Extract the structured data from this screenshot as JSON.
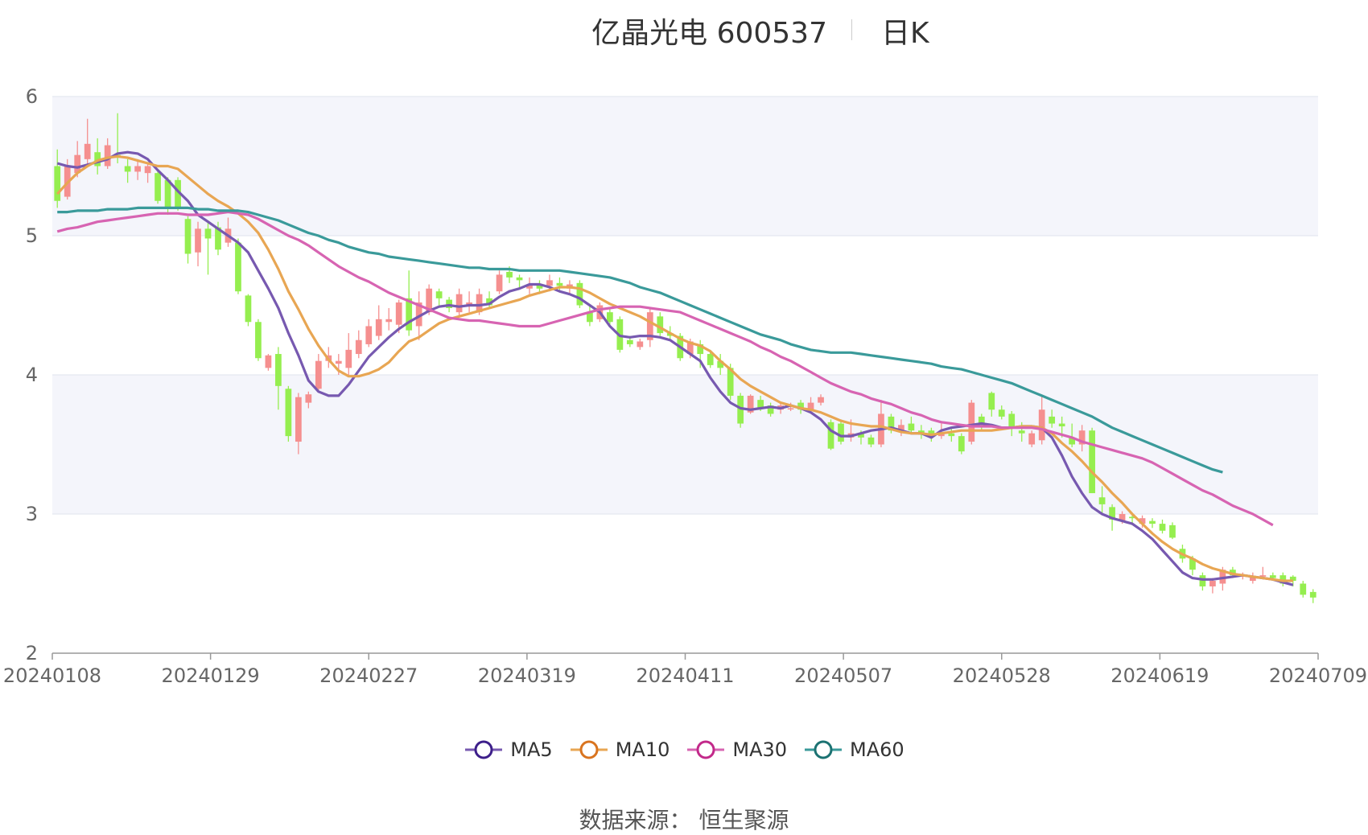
{
  "header": {
    "title": "亿晶光电 600537",
    "subtitle": "日K"
  },
  "source_label": "数据来源：  恒生聚源",
  "colors": {
    "up": "#f58f8f",
    "down": "#95ee4f",
    "grid": "#dfe3ee",
    "band": "#f4f5fb",
    "axis": "#999999"
  },
  "chart_data": {
    "type": "candlestick",
    "title": "亿晶光电 600537",
    "subtitle": "日K",
    "ylim": [
      2,
      6
    ],
    "y_ticks": [
      "2",
      "3",
      "4",
      "5",
      "6"
    ],
    "x_ticks": [
      "20240108",
      "20240129",
      "20240227",
      "20240319",
      "20240411",
      "20240507",
      "20240528",
      "20240619",
      "20240709"
    ],
    "legend_position": "bottom",
    "grid": true,
    "series": [
      {
        "name": "MA5",
        "color": "#7759b0",
        "legend_color": "#3d1f8a",
        "values": [
          5.52,
          5.5,
          5.49,
          5.51,
          5.53,
          5.55,
          5.59,
          5.6,
          5.59,
          5.55,
          5.47,
          5.4,
          5.32,
          5.25,
          5.15,
          5.1,
          5.05,
          5.0,
          4.95,
          4.88,
          4.75,
          4.62,
          4.48,
          4.3,
          4.14,
          3.96,
          3.88,
          3.85,
          3.85,
          3.93,
          4.03,
          4.13,
          4.2,
          4.27,
          4.33,
          4.38,
          4.42,
          4.46,
          4.49,
          4.5,
          4.49,
          4.5,
          4.5,
          4.51,
          4.56,
          4.6,
          4.62,
          4.65,
          4.65,
          4.63,
          4.6,
          4.58,
          4.55,
          4.5,
          4.45,
          4.35,
          4.28,
          4.27,
          4.28,
          4.28,
          4.27,
          4.25,
          4.2,
          4.15,
          4.1,
          3.98,
          3.88,
          3.8,
          3.76,
          3.75,
          3.76,
          3.77,
          3.76,
          3.78,
          3.76,
          3.73,
          3.68,
          3.6,
          3.56,
          3.56,
          3.58,
          3.6,
          3.61,
          3.62,
          3.6,
          3.58,
          3.58,
          3.55,
          3.6,
          3.62,
          3.63,
          3.64,
          3.65,
          3.64,
          3.62,
          3.62,
          3.63,
          3.63,
          3.62,
          3.55,
          3.42,
          3.27,
          3.15,
          3.05,
          3.0,
          2.97,
          2.95,
          2.93,
          2.88,
          2.82,
          2.74,
          2.66,
          2.58,
          2.54,
          2.53,
          2.53,
          2.54,
          2.55,
          2.56,
          2.55,
          2.54,
          2.53,
          2.51,
          2.49
        ]
      },
      {
        "name": "MA10",
        "color": "#e8a653",
        "legend_color": "#d9741f",
        "values": [
          5.3,
          5.38,
          5.45,
          5.5,
          5.54,
          5.56,
          5.57,
          5.56,
          5.54,
          5.52,
          5.5,
          5.5,
          5.48,
          5.42,
          5.36,
          5.3,
          5.25,
          5.21,
          5.16,
          5.1,
          5.02,
          4.9,
          4.76,
          4.6,
          4.47,
          4.33,
          4.21,
          4.11,
          4.03,
          3.99,
          3.99,
          4.01,
          4.04,
          4.09,
          4.17,
          4.24,
          4.27,
          4.32,
          4.37,
          4.4,
          4.42,
          4.44,
          4.46,
          4.48,
          4.5,
          4.52,
          4.54,
          4.57,
          4.59,
          4.61,
          4.63,
          4.63,
          4.62,
          4.59,
          4.55,
          4.51,
          4.48,
          4.45,
          4.42,
          4.38,
          4.34,
          4.3,
          4.26,
          4.23,
          4.21,
          4.17,
          4.1,
          4.04,
          3.97,
          3.92,
          3.88,
          3.84,
          3.8,
          3.78,
          3.76,
          3.75,
          3.73,
          3.7,
          3.67,
          3.65,
          3.64,
          3.63,
          3.63,
          3.61,
          3.59,
          3.58,
          3.58,
          3.57,
          3.58,
          3.59,
          3.6,
          3.6,
          3.6,
          3.6,
          3.61,
          3.62,
          3.63,
          3.63,
          3.62,
          3.58,
          3.51,
          3.45,
          3.38,
          3.3,
          3.23,
          3.15,
          3.08,
          3.0,
          2.93,
          2.86,
          2.8,
          2.75,
          2.71,
          2.68,
          2.64,
          2.61,
          2.59,
          2.57,
          2.56,
          2.55,
          2.54,
          2.53,
          2.52,
          2.52
        ]
      },
      {
        "name": "MA30",
        "color": "#d764b2",
        "legend_color": "#c2298a",
        "values": [
          5.03,
          5.05,
          5.06,
          5.08,
          5.1,
          5.11,
          5.12,
          5.13,
          5.14,
          5.15,
          5.16,
          5.16,
          5.16,
          5.15,
          5.15,
          5.15,
          5.16,
          5.17,
          5.16,
          5.15,
          5.12,
          5.08,
          5.04,
          5.0,
          4.97,
          4.93,
          4.88,
          4.83,
          4.78,
          4.74,
          4.7,
          4.67,
          4.63,
          4.59,
          4.56,
          4.53,
          4.5,
          4.47,
          4.44,
          4.41,
          4.4,
          4.39,
          4.39,
          4.38,
          4.37,
          4.36,
          4.35,
          4.35,
          4.35,
          4.37,
          4.39,
          4.41,
          4.43,
          4.45,
          4.47,
          4.48,
          4.49,
          4.49,
          4.49,
          4.48,
          4.47,
          4.46,
          4.45,
          4.42,
          4.39,
          4.36,
          4.33,
          4.3,
          4.27,
          4.24,
          4.2,
          4.17,
          4.13,
          4.1,
          4.06,
          4.02,
          3.98,
          3.94,
          3.91,
          3.88,
          3.86,
          3.83,
          3.81,
          3.79,
          3.76,
          3.73,
          3.71,
          3.68,
          3.66,
          3.65,
          3.64,
          3.63,
          3.63,
          3.63,
          3.62,
          3.62,
          3.62,
          3.62,
          3.61,
          3.59,
          3.57,
          3.55,
          3.52,
          3.5,
          3.48,
          3.46,
          3.44,
          3.42,
          3.4,
          3.37,
          3.33,
          3.29,
          3.25,
          3.21,
          3.17,
          3.14,
          3.1,
          3.06,
          3.03,
          3.0,
          2.96,
          2.92
        ]
      },
      {
        "name": "MA60",
        "color": "#3a9a9a",
        "legend_color": "#1c7272",
        "values": [
          5.17,
          5.17,
          5.18,
          5.18,
          5.18,
          5.19,
          5.19,
          5.19,
          5.2,
          5.2,
          5.2,
          5.2,
          5.2,
          5.2,
          5.19,
          5.19,
          5.18,
          5.18,
          5.18,
          5.17,
          5.15,
          5.13,
          5.11,
          5.08,
          5.05,
          5.02,
          5.0,
          4.97,
          4.95,
          4.92,
          4.9,
          4.88,
          4.87,
          4.85,
          4.84,
          4.83,
          4.82,
          4.81,
          4.8,
          4.79,
          4.78,
          4.77,
          4.77,
          4.76,
          4.76,
          4.76,
          4.75,
          4.75,
          4.75,
          4.75,
          4.75,
          4.74,
          4.73,
          4.72,
          4.71,
          4.7,
          4.68,
          4.66,
          4.63,
          4.61,
          4.59,
          4.56,
          4.53,
          4.5,
          4.47,
          4.44,
          4.41,
          4.38,
          4.35,
          4.32,
          4.29,
          4.27,
          4.25,
          4.22,
          4.2,
          4.18,
          4.17,
          4.16,
          4.16,
          4.16,
          4.15,
          4.14,
          4.13,
          4.12,
          4.11,
          4.1,
          4.09,
          4.08,
          4.06,
          4.05,
          4.04,
          4.02,
          4.0,
          3.98,
          3.96,
          3.94,
          3.91,
          3.88,
          3.85,
          3.82,
          3.79,
          3.76,
          3.73,
          3.7,
          3.66,
          3.62,
          3.59,
          3.56,
          3.53,
          3.5,
          3.47,
          3.44,
          3.41,
          3.38,
          3.35,
          3.32,
          3.3
        ]
      }
    ],
    "candles": [
      [
        5.5,
        5.25,
        5.62,
        5.2
      ],
      [
        5.28,
        5.5,
        5.55,
        5.26
      ],
      [
        5.45,
        5.58,
        5.68,
        5.42
      ],
      [
        5.55,
        5.66,
        5.84,
        5.5
      ],
      [
        5.6,
        5.5,
        5.7,
        5.44
      ],
      [
        5.5,
        5.65,
        5.7,
        5.48
      ],
      [
        5.58,
        5.56,
        5.88,
        5.52
      ],
      [
        5.5,
        5.46,
        5.55,
        5.38
      ],
      [
        5.46,
        5.5,
        5.55,
        5.4
      ],
      [
        5.45,
        5.5,
        5.52,
        5.38
      ],
      [
        5.45,
        5.25,
        5.46,
        5.23
      ],
      [
        5.4,
        5.2,
        5.42,
        5.15
      ],
      [
        5.4,
        5.2,
        5.42,
        5.18
      ],
      [
        5.12,
        4.87,
        5.14,
        4.8
      ],
      [
        4.88,
        5.05,
        5.1,
        4.78
      ],
      [
        5.05,
        4.98,
        5.1,
        4.72
      ],
      [
        5.06,
        4.9,
        5.1,
        4.86
      ],
      [
        4.95,
        5.05,
        5.13,
        4.92
      ],
      [
        4.95,
        4.6,
        4.98,
        4.58
      ],
      [
        4.57,
        4.38,
        4.58,
        4.35
      ],
      [
        4.38,
        4.12,
        4.4,
        4.1
      ],
      [
        4.05,
        4.14,
        4.15,
        4.03
      ],
      [
        4.15,
        3.92,
        4.2,
        3.75
      ],
      [
        3.9,
        3.56,
        3.92,
        3.52
      ],
      [
        3.52,
        3.84,
        3.87,
        3.43
      ],
      [
        3.8,
        3.86,
        3.88,
        3.76
      ],
      [
        3.9,
        4.1,
        4.15,
        3.88
      ],
      [
        4.1,
        4.14,
        4.2,
        4.05
      ],
      [
        4.08,
        4.1,
        4.15,
        4.0
      ],
      [
        4.05,
        4.18,
        4.3,
        4.0
      ],
      [
        4.15,
        4.25,
        4.32,
        4.12
      ],
      [
        4.22,
        4.35,
        4.4,
        4.2
      ],
      [
        4.28,
        4.4,
        4.5,
        4.25
      ],
      [
        4.38,
        4.4,
        4.48,
        4.32
      ],
      [
        4.36,
        4.52,
        4.54,
        4.3
      ],
      [
        4.55,
        4.32,
        4.75,
        4.28
      ],
      [
        4.35,
        4.52,
        4.6,
        4.25
      ],
      [
        4.45,
        4.62,
        4.65,
        4.43
      ],
      [
        4.6,
        4.55,
        4.62,
        4.5
      ],
      [
        4.54,
        4.48,
        4.56,
        4.45
      ],
      [
        4.45,
        4.58,
        4.62,
        4.42
      ],
      [
        4.5,
        4.52,
        4.6,
        4.45
      ],
      [
        4.45,
        4.58,
        4.62,
        4.43
      ],
      [
        4.55,
        4.5,
        4.6,
        4.48
      ],
      [
        4.6,
        4.72,
        4.75,
        4.58
      ],
      [
        4.74,
        4.7,
        4.78,
        4.66
      ],
      [
        4.7,
        4.68,
        4.72,
        4.62
      ],
      [
        4.62,
        4.65,
        4.7,
        4.58
      ],
      [
        4.65,
        4.62,
        4.68,
        4.58
      ],
      [
        4.64,
        4.68,
        4.72,
        4.6
      ],
      [
        4.66,
        4.64,
        4.7,
        4.6
      ],
      [
        4.62,
        4.65,
        4.68,
        4.58
      ],
      [
        4.66,
        4.5,
        4.68,
        4.48
      ],
      [
        4.45,
        4.38,
        4.5,
        4.35
      ],
      [
        4.4,
        4.5,
        4.52,
        4.38
      ],
      [
        4.45,
        4.38,
        4.48,
        4.35
      ],
      [
        4.4,
        4.18,
        4.42,
        4.16
      ],
      [
        4.25,
        4.22,
        4.28,
        4.2
      ],
      [
        4.2,
        4.24,
        4.26,
        4.18
      ],
      [
        4.25,
        4.45,
        4.48,
        4.2
      ],
      [
        4.42,
        4.3,
        4.45,
        4.28
      ],
      [
        4.3,
        4.28,
        4.35,
        4.25
      ],
      [
        4.28,
        4.12,
        4.3,
        4.1
      ],
      [
        4.15,
        4.24,
        4.26,
        4.12
      ],
      [
        4.22,
        4.15,
        4.25,
        4.05
      ],
      [
        4.15,
        4.07,
        4.18,
        4.05
      ],
      [
        4.1,
        4.05,
        4.15,
        4.0
      ],
      [
        4.05,
        3.85,
        4.08,
        3.82
      ],
      [
        3.85,
        3.65,
        3.87,
        3.62
      ],
      [
        3.73,
        3.85,
        3.86,
        3.72
      ],
      [
        3.82,
        3.76,
        3.85,
        3.74
      ],
      [
        3.78,
        3.72,
        3.8,
        3.7
      ],
      [
        3.75,
        3.78,
        3.8,
        3.72
      ],
      [
        3.76,
        3.76,
        3.8,
        3.74
      ],
      [
        3.8,
        3.75,
        3.82,
        3.72
      ],
      [
        3.75,
        3.8,
        3.84,
        3.74
      ],
      [
        3.8,
        3.84,
        3.86,
        3.78
      ],
      [
        3.66,
        3.47,
        3.68,
        3.46
      ],
      [
        3.65,
        3.52,
        3.68,
        3.5
      ],
      [
        3.55,
        3.58,
        3.68,
        3.52
      ],
      [
        3.58,
        3.55,
        3.6,
        3.5
      ],
      [
        3.55,
        3.5,
        3.57,
        3.48
      ],
      [
        3.5,
        3.72,
        3.82,
        3.48
      ],
      [
        3.7,
        3.6,
        3.72,
        3.58
      ],
      [
        3.6,
        3.64,
        3.68,
        3.56
      ],
      [
        3.65,
        3.6,
        3.7,
        3.58
      ],
      [
        3.6,
        3.57,
        3.64,
        3.54
      ],
      [
        3.6,
        3.56,
        3.62,
        3.52
      ],
      [
        3.56,
        3.58,
        3.65,
        3.54
      ],
      [
        3.58,
        3.56,
        3.62,
        3.52
      ],
      [
        3.56,
        3.45,
        3.58,
        3.43
      ],
      [
        3.52,
        3.8,
        3.82,
        3.5
      ],
      [
        3.7,
        3.65,
        3.72,
        3.6
      ],
      [
        3.87,
        3.75,
        3.88,
        3.7
      ],
      [
        3.75,
        3.7,
        3.78,
        3.68
      ],
      [
        3.72,
        3.62,
        3.74,
        3.56
      ],
      [
        3.6,
        3.58,
        3.66,
        3.52
      ],
      [
        3.5,
        3.58,
        3.6,
        3.48
      ],
      [
        3.53,
        3.75,
        3.85,
        3.5
      ],
      [
        3.7,
        3.65,
        3.75,
        3.62
      ],
      [
        3.65,
        3.63,
        3.7,
        3.55
      ],
      [
        3.55,
        3.5,
        3.65,
        3.48
      ],
      [
        3.5,
        3.6,
        3.64,
        3.45
      ],
      [
        3.6,
        3.15,
        3.62,
        3.15
      ],
      [
        3.12,
        3.07,
        3.2,
        3.0
      ],
      [
        3.05,
        2.96,
        3.07,
        2.88
      ],
      [
        2.95,
        3.0,
        3.02,
        2.93
      ],
      [
        2.98,
        2.97,
        3.0,
        2.92
      ],
      [
        2.93,
        2.97,
        2.99,
        2.9
      ],
      [
        2.95,
        2.93,
        2.97,
        2.9
      ],
      [
        2.93,
        2.88,
        2.96,
        2.86
      ],
      [
        2.92,
        2.83,
        2.94,
        2.82
      ],
      [
        2.75,
        2.68,
        2.78,
        2.65
      ],
      [
        2.68,
        2.6,
        2.7,
        2.56
      ],
      [
        2.56,
        2.48,
        2.58,
        2.45
      ],
      [
        2.48,
        2.52,
        2.54,
        2.43
      ],
      [
        2.5,
        2.6,
        2.62,
        2.45
      ],
      [
        2.6,
        2.56,
        2.62,
        2.54
      ],
      [
        2.55,
        2.56,
        2.58,
        2.53
      ],
      [
        2.52,
        2.55,
        2.58,
        2.5
      ],
      [
        2.55,
        2.56,
        2.62,
        2.53
      ],
      [
        2.56,
        2.54,
        2.58,
        2.52
      ],
      [
        2.56,
        2.5,
        2.58,
        2.48
      ],
      [
        2.55,
        2.52,
        2.56,
        2.48
      ],
      [
        2.5,
        2.42,
        2.52,
        2.4
      ],
      [
        2.44,
        2.4,
        2.46,
        2.36
      ]
    ]
  }
}
